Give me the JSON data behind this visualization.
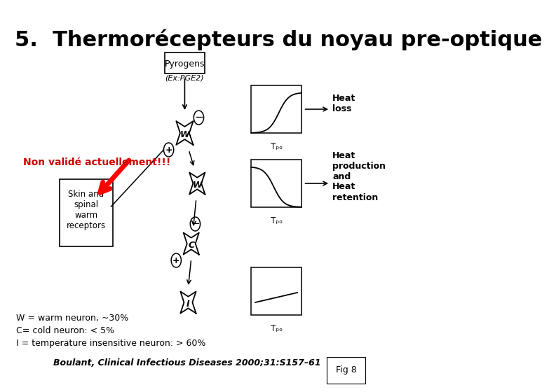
{
  "title": "5.  Thermorécepteurs du noyau pre-optique",
  "title_fontsize": 22,
  "background_color": "#ffffff",
  "text_color": "#000000",
  "label_non_valide": "Non validé actuellement!!!",
  "label_non_valide_color": "#cc0000",
  "label_W_neuron": "W = warm neuron, ~30%",
  "label_C_neuron": "C= cold neuron: < 5%",
  "label_I_neuron": "I = temperature insensitive neuron: > 60%",
  "citation": "Boulant, Clinical Infectious Diseases 2000;31:S157–61",
  "fig_label": "Fig 8",
  "pyrogens_label": "Pyrogens",
  "ex_pge2_label": "(Ex:PGE2)",
  "heat_loss_label": "Heat\nloss",
  "heat_prod_label": "Heat\nproduction\nand\nHeat\nretention",
  "skin_label": "Skin and\nspinal\nwarm\nreceptors",
  "tpo_label": "Tₚₒ",
  "W_label": "W",
  "C_label": "C",
  "I_label": "I",
  "minus_label": "−",
  "plus_label": "+"
}
